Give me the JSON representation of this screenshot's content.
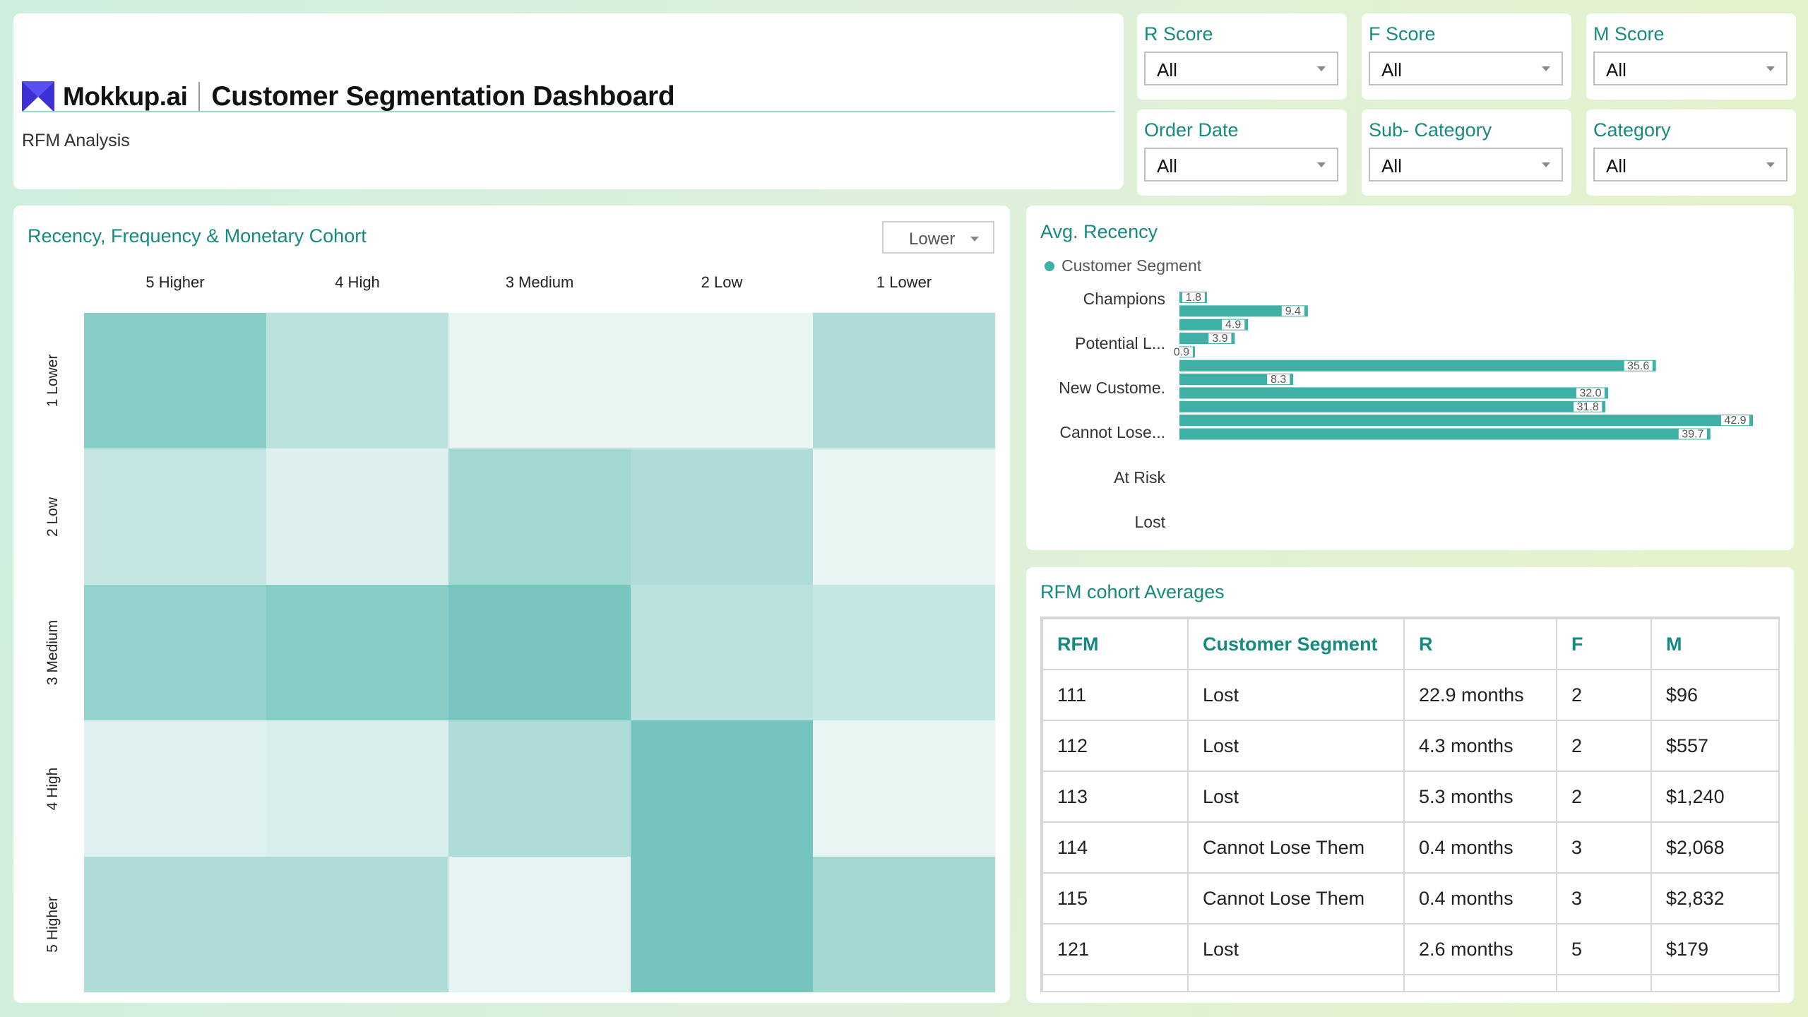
{
  "header": {
    "brand": "Mokkup.ai",
    "title": "Customer Segmentation Dashboard",
    "subtitle": "RFM Analysis",
    "brand_color": "#3d2fd6"
  },
  "filters": [
    {
      "label": "R Score",
      "value": "All"
    },
    {
      "label": "F Score",
      "value": "All"
    },
    {
      "label": "M Score",
      "value": "All"
    },
    {
      "label": "Order Date",
      "value": "All"
    },
    {
      "label": "Sub- Category",
      "value": "All"
    },
    {
      "label": "Category",
      "value": "All"
    }
  ],
  "heatmap": {
    "title": "Recency, Frequency & Monetary Cohort",
    "dropdown_value": "Lower",
    "columns": [
      "5 Higher",
      "4 High",
      "3 Medium",
      "2 Low",
      "1 Lower"
    ],
    "rows": [
      "1 Lower",
      "2 Low",
      "3 Medium",
      "4 High",
      "5 Higher"
    ],
    "intensity": [
      [
        0.72,
        0.36,
        0.06,
        0.06,
        0.46
      ],
      [
        0.3,
        0.14,
        0.54,
        0.46,
        0.06
      ],
      [
        0.62,
        0.72,
        0.82,
        0.36,
        0.3
      ],
      [
        0.12,
        0.16,
        0.46,
        0.84,
        0.06
      ],
      [
        0.46,
        0.46,
        0.08,
        0.84,
        0.54
      ]
    ],
    "color_low": "#f1f9f7",
    "color_high": "#5fbab3"
  },
  "recency": {
    "title": "Avg. Recency",
    "legend": "Customer Segment",
    "segment_labels": [
      "Champions",
      "Potential L...",
      "New Custome.",
      "Cannot Lose...",
      "At Risk",
      "Lost"
    ],
    "bars": [
      1.8,
      9.4,
      4.9,
      3.9,
      0.9,
      35.6,
      8.3,
      32.0,
      31.8,
      42.9,
      39.7
    ],
    "bar_labels": [
      "1.8",
      "9.4",
      "4.9",
      "3.9",
      "0.9",
      "35.6",
      "8.3",
      "32.0",
      "31.8",
      "42.9",
      "39.7"
    ],
    "bar_color": "#3fb0a6"
  },
  "table": {
    "title": "RFM cohort Averages",
    "headers": [
      "RFM",
      "Customer Segment",
      "R",
      "F",
      "M"
    ],
    "rows": [
      [
        "111",
        "Lost",
        "22.9 months",
        "2",
        "$96"
      ],
      [
        "112",
        "Lost",
        "4.3 months",
        "2",
        "$557"
      ],
      [
        "113",
        "Lost",
        "5.3 months",
        "2",
        "$1,240"
      ],
      [
        "114",
        "Cannot Lose Them",
        "0.4 months",
        "3",
        "$2,068"
      ],
      [
        "115",
        "Cannot Lose Them",
        "0.4 months",
        "3",
        "$2,832"
      ],
      [
        "121",
        "Lost",
        "2.6 months",
        "5",
        "$179"
      ]
    ]
  }
}
